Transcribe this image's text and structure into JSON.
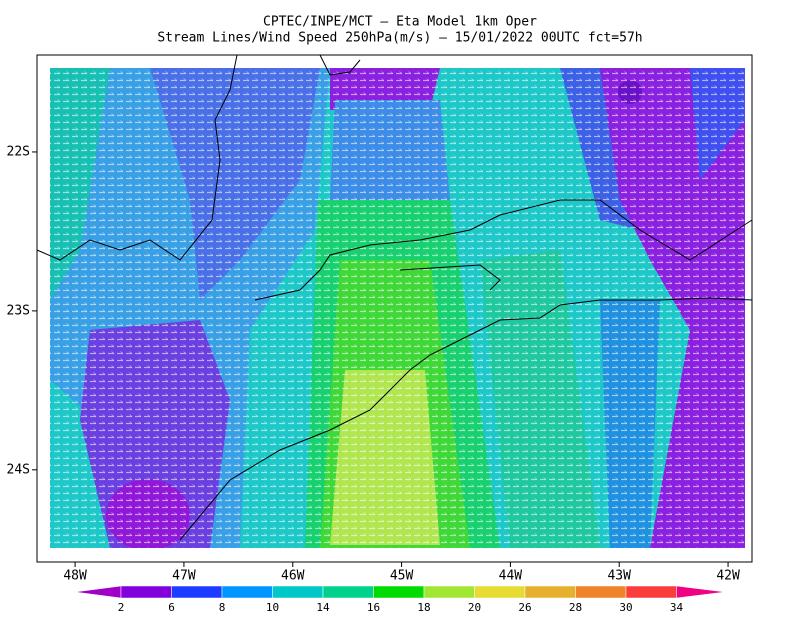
{
  "chart_data": {
    "type": "streamline",
    "title": "CPTEC/INPE/MCT —  Eta Model 1km Oper",
    "subtitle": "Stream Lines/Wind Speed 250hPa(m/s) — 15/01/2022 00UTC fct=57h",
    "xlim": [
      -48.35,
      -41.78
    ],
    "ylim": [
      -24.58,
      -21.39
    ],
    "xticks": [
      {
        "value": -48,
        "label": "48W"
      },
      {
        "value": -47,
        "label": "47W"
      },
      {
        "value": -46,
        "label": "46W"
      },
      {
        "value": -45,
        "label": "45W"
      },
      {
        "value": -44,
        "label": "44W"
      },
      {
        "value": -43,
        "label": "43W"
      },
      {
        "value": -42,
        "label": "42W"
      }
    ],
    "yticks": [
      {
        "value": -22,
        "label": "22S"
      },
      {
        "value": -23,
        "label": "23S"
      },
      {
        "value": -24,
        "label": "24S"
      }
    ],
    "colorbar": {
      "levels": [
        2,
        6,
        8,
        10,
        14,
        16,
        18,
        20,
        26,
        28,
        30,
        34
      ],
      "colors": [
        "#a000c8",
        "#8200dc",
        "#1e3cff",
        "#0096ff",
        "#00c8c8",
        "#00d28c",
        "#00dc00",
        "#a0e632",
        "#e6dc32",
        "#e6af2d",
        "#f08228",
        "#fa3c3c",
        "#f00082"
      ]
    }
  }
}
